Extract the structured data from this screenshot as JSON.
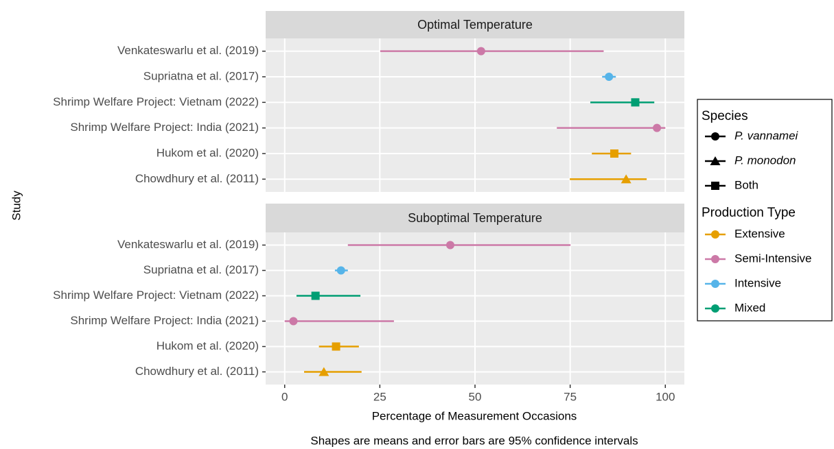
{
  "chart_data": {
    "type": "errorbar",
    "x_label": "Percentage of Measurement Occasions",
    "y_label": "Study",
    "caption": "Shapes are means and error bars are 95% confidence intervals",
    "xlim": [
      -5,
      105
    ],
    "xticks": [
      0,
      25,
      50,
      75,
      100
    ],
    "grid": true,
    "categories": [
      "Venkateswarlu et al. (2019)",
      "Supriatna et al. (2017)",
      "Shrimp Welfare Project: Vietnam (2022)",
      "Shrimp Welfare Project: India (2021)",
      "Hukom et al. (2020)",
      "Chowdhury et al. (2011)"
    ],
    "species": [
      "P. vannamei",
      "P. vannamei",
      "Both",
      "P. vannamei",
      "Both",
      "P. monodon"
    ],
    "production": [
      "Semi-Intensive",
      "Intensive",
      "Mixed",
      "Semi-Intensive",
      "Extensive",
      "Extensive"
    ],
    "panels": [
      {
        "title": "Optimal Temperature",
        "values": [
          51.6,
          85.2,
          92.1,
          97.8,
          86.6,
          89.7
        ],
        "lower": [
          25.1,
          83.4,
          80.3,
          71.5,
          80.7,
          74.9
        ],
        "upper": [
          83.8,
          87.0,
          97.1,
          100,
          91.0,
          95.1
        ]
      },
      {
        "title": "Suboptimal Temperature",
        "values": [
          43.5,
          14.8,
          8.1,
          2.3,
          13.5,
          10.3
        ],
        "lower": [
          16.6,
          13.2,
          3.1,
          0,
          9.0,
          5.1
        ],
        "upper": [
          75.1,
          16.6,
          19.9,
          28.7,
          19.5,
          20.2
        ]
      }
    ],
    "legend": {
      "species": {
        "title": "Species",
        "items": [
          {
            "name": "P. vannamei",
            "shape": "circle",
            "font_style": "italic"
          },
          {
            "name": "P. monodon",
            "shape": "triangle",
            "font_style": "italic"
          },
          {
            "name": "Both",
            "shape": "square",
            "font_style": "normal"
          }
        ]
      },
      "production": {
        "title": "Production Type",
        "items": [
          {
            "name": "Extensive",
            "color": "#E69F00"
          },
          {
            "name": "Semi-Intensive",
            "color": "#CC79A7"
          },
          {
            "name": "Intensive",
            "color": "#56B4E9"
          },
          {
            "name": "Mixed",
            "color": "#009E73"
          }
        ]
      }
    }
  }
}
